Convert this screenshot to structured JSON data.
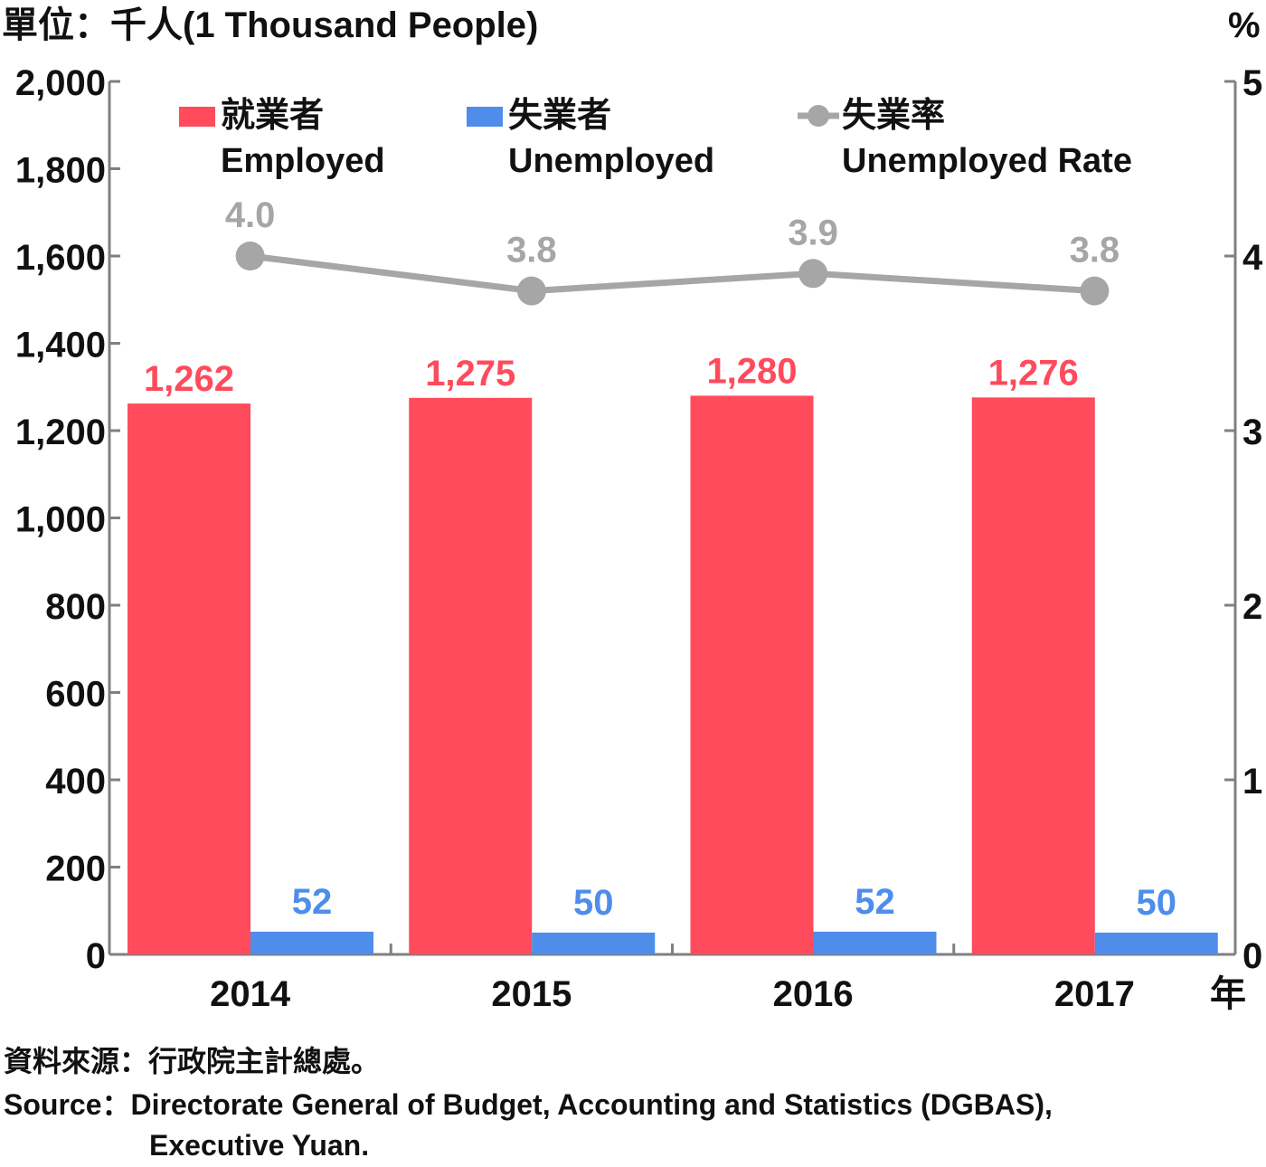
{
  "unit_label": "單位：千人(1 Thousand People)",
  "right_unit_label": "%",
  "year_label": "年",
  "source_zh": "資料來源：行政院主計總處。",
  "source_en_line1": "Source：Directorate General of Budget, Accounting and Statistics (DGBAS),",
  "source_en_line2": "Executive Yuan.",
  "colors": {
    "employed": "#FF4B5C",
    "unemployed": "#4E8DEA",
    "rate": "#A6A6A6",
    "axis": "#808080"
  },
  "chart_data": {
    "type": "bar",
    "categories": [
      "2014",
      "2015",
      "2016",
      "2017"
    ],
    "series": [
      {
        "name": "就業者 Employed",
        "name_zh": "就業者",
        "name_en": "Employed",
        "values": [
          1262,
          1275,
          1280,
          1276
        ],
        "labels": [
          "1,262",
          "1,275",
          "1,280",
          "1,276"
        ],
        "axis": "left"
      },
      {
        "name": "失業者 Unemployed",
        "name_zh": "失業者",
        "name_en": "Unemployed",
        "values": [
          52,
          50,
          52,
          50
        ],
        "labels": [
          "52",
          "50",
          "52",
          "50"
        ],
        "axis": "left"
      },
      {
        "name": "失業率 Unemployed Rate",
        "name_zh": "失業率",
        "name_en": "Unemployed Rate",
        "type": "line",
        "values": [
          4.0,
          3.8,
          3.9,
          3.8
        ],
        "labels": [
          "4.0",
          "3.8",
          "3.9",
          "3.8"
        ],
        "axis": "right"
      }
    ],
    "y_left": {
      "min": 0,
      "max": 2000,
      "ticks": [
        0,
        200,
        400,
        600,
        800,
        1000,
        1200,
        1400,
        1600,
        1800,
        2000
      ],
      "tick_labels": [
        "0",
        "200",
        "400",
        "600",
        "800",
        "1,000",
        "1,200",
        "1,400",
        "1,600",
        "1,800",
        "2,000"
      ]
    },
    "y_right": {
      "min": 0,
      "max": 5,
      "ticks": [
        0,
        1,
        2,
        3,
        4,
        5
      ],
      "tick_labels": [
        "0",
        "1",
        "2",
        "3",
        "4",
        "5"
      ]
    },
    "legend_position": "top",
    "grid": false
  }
}
